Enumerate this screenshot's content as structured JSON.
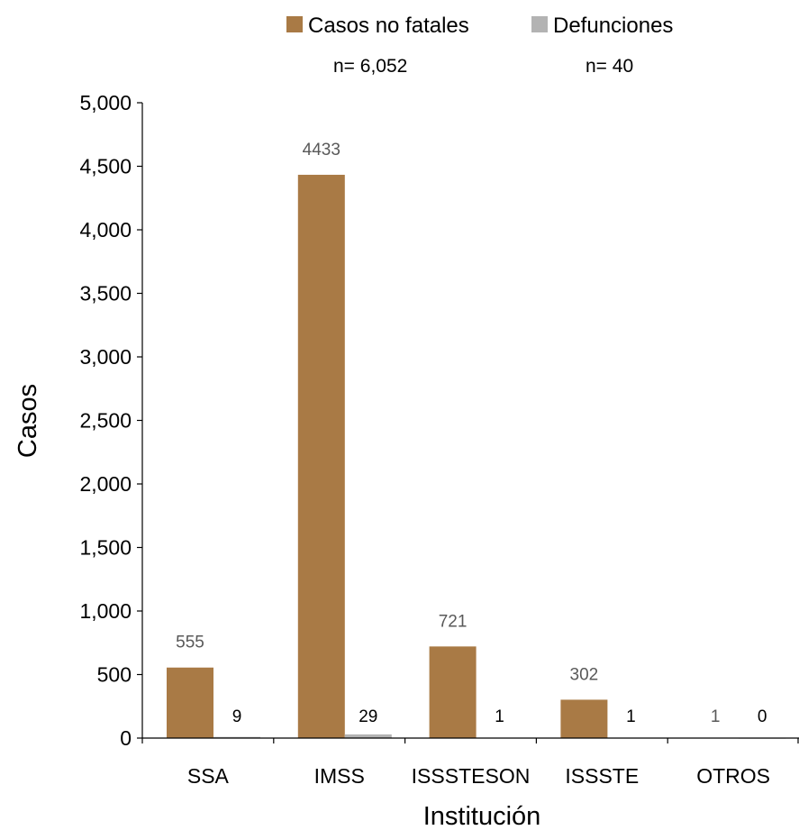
{
  "chart_data": {
    "type": "bar",
    "title": "",
    "xlabel": "Institución",
    "ylabel": "Casos",
    "categories": [
      "SSA",
      "IMSS",
      "ISSSTESON",
      "ISSSTE",
      "OTROS"
    ],
    "series": [
      {
        "name": "Casos no fatales",
        "values": [
          555,
          4433,
          721,
          302,
          1
        ],
        "color": "#A97A45",
        "total_label": "n= 6,052"
      },
      {
        "name": "Defunciones",
        "values": [
          9,
          29,
          1,
          1,
          0
        ],
        "color": "#B3B3B3",
        "total_label": "n= 40"
      }
    ],
    "ylim": [
      0,
      5000
    ],
    "yticks": [
      "0",
      "500",
      "1,000",
      "1,500",
      "2,000",
      "2,500",
      "3,000",
      "3,500",
      "4,000",
      "4,500",
      "5,000"
    ],
    "legend_position": "top",
    "grid": false
  }
}
